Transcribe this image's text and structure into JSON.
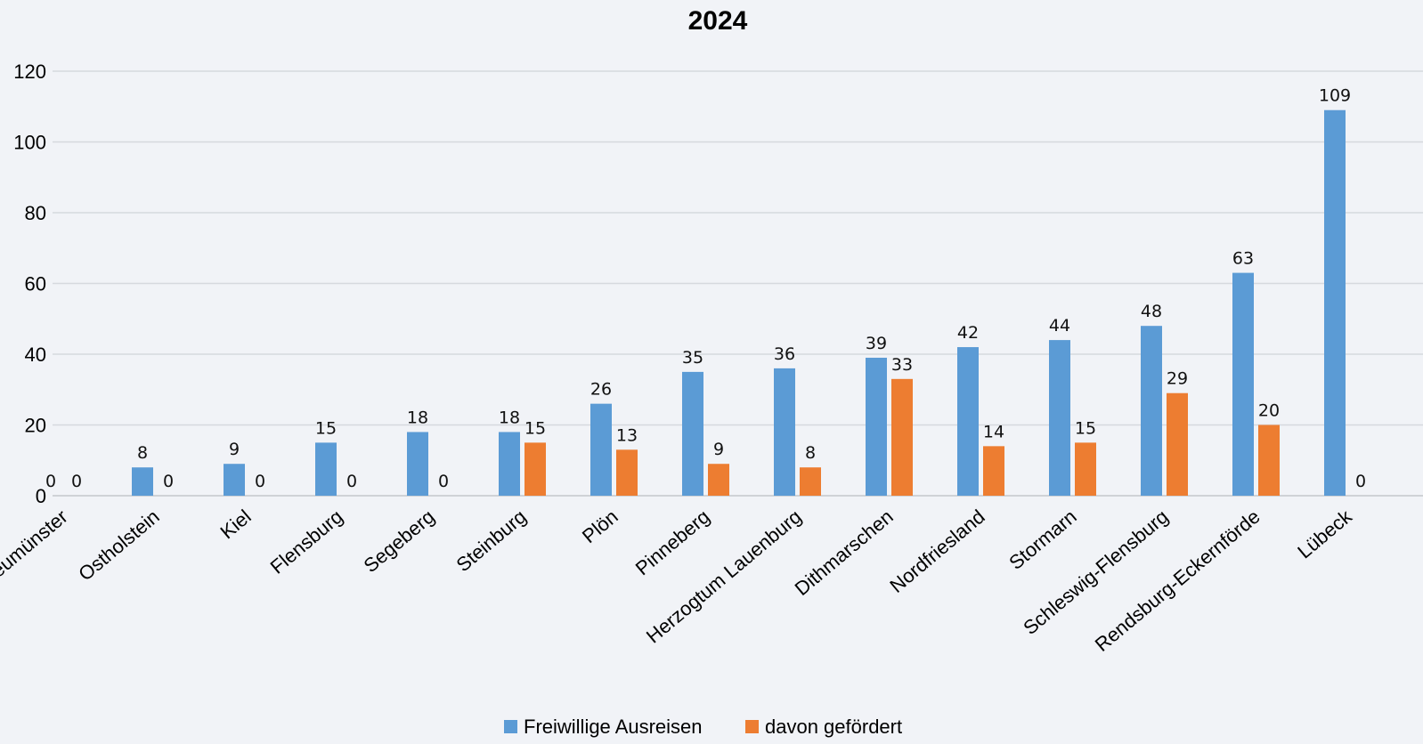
{
  "chart_data": {
    "type": "bar",
    "title": "2024",
    "xlabel": "",
    "ylabel": "",
    "ylim": [
      0,
      120
    ],
    "yticks": [
      0,
      20,
      40,
      60,
      80,
      100,
      120
    ],
    "grid": true,
    "legend_position": "bottom",
    "categories": [
      "Neumünster",
      "Ostholstein",
      "Kiel",
      "Flensburg",
      "Segeberg",
      "Steinburg",
      "Plön",
      "Pinneberg",
      "Herzogtum Lauenburg",
      "Dithmarschen",
      "Nordfriesland",
      "Stormarn",
      "Schleswig-Flensburg",
      "Rendsburg-Eckernförde",
      "Lübeck"
    ],
    "series": [
      {
        "name": "Freiwillige Ausreisen",
        "color": "#5b9bd5",
        "values": [
          0,
          8,
          9,
          15,
          18,
          18,
          26,
          35,
          36,
          39,
          42,
          44,
          48,
          63,
          109
        ]
      },
      {
        "name": "davon gefördert",
        "color": "#ed7d31",
        "values": [
          0,
          0,
          0,
          0,
          0,
          15,
          13,
          9,
          8,
          33,
          14,
          15,
          29,
          20,
          0
        ]
      }
    ]
  }
}
